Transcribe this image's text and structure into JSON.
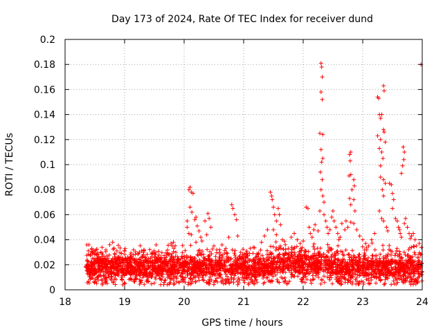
{
  "chart_data": {
    "type": "scatter",
    "title": "Day 173 of 2024, Rate Of TEC Index for receiver dund",
    "xlabel": "GPS time / hours",
    "ylabel": "ROTI / TECUs",
    "xlim": [
      18,
      24
    ],
    "ylim": [
      0,
      0.2
    ],
    "x_ticks": [
      18,
      19,
      20,
      21,
      22,
      23,
      24
    ],
    "y_ticks": [
      0,
      0.02,
      0.04,
      0.06,
      0.08,
      0.1,
      0.12,
      0.14,
      0.16,
      0.18,
      0.2
    ],
    "x_tick_labels": [
      "18",
      "19",
      "20",
      "21",
      "22",
      "23",
      "24"
    ],
    "y_tick_labels": [
      "0",
      "0.02",
      "0.04",
      "0.06",
      "0.08",
      "0.1",
      "0.12",
      "0.14",
      "0.16",
      "0.18",
      "0.2"
    ],
    "grid": true,
    "marker": "+",
    "marker_color": "#ff0000",
    "series": [
      {
        "name": "ROTI",
        "points": [
          [
            18.4,
            0.036
          ],
          [
            18.45,
            0.033
          ],
          [
            18.5,
            0.031
          ],
          [
            18.42,
            0.028
          ],
          [
            18.55,
            0.025
          ],
          [
            18.6,
            0.03
          ],
          [
            18.65,
            0.022
          ],
          [
            18.7,
            0.027
          ],
          [
            18.75,
            0.036
          ],
          [
            18.8,
            0.038
          ],
          [
            18.85,
            0.024
          ],
          [
            18.9,
            0.021
          ],
          [
            18.95,
            0.029
          ],
          [
            19.0,
            0.031
          ],
          [
            19.05,
            0.026
          ],
          [
            19.1,
            0.028
          ],
          [
            19.15,
            0.032
          ],
          [
            19.2,
            0.024
          ],
          [
            19.25,
            0.03
          ],
          [
            19.3,
            0.027
          ],
          [
            19.4,
            0.025
          ],
          [
            19.5,
            0.029
          ],
          [
            19.6,
            0.024
          ],
          [
            19.7,
            0.026
          ],
          [
            19.78,
            0.037
          ],
          [
            19.8,
            0.035
          ],
          [
            19.82,
            0.038
          ],
          [
            19.9,
            0.024
          ],
          [
            20.0,
            0.027
          ],
          [
            20.08,
            0.08
          ],
          [
            20.1,
            0.082
          ],
          [
            20.12,
            0.078
          ],
          [
            20.15,
            0.077
          ],
          [
            20.1,
            0.066
          ],
          [
            20.13,
            0.062
          ],
          [
            20.18,
            0.056
          ],
          [
            20.2,
            0.058
          ],
          [
            20.05,
            0.055
          ],
          [
            20.05,
            0.05
          ],
          [
            20.08,
            0.045
          ],
          [
            20.12,
            0.044
          ],
          [
            20.22,
            0.051
          ],
          [
            20.25,
            0.047
          ],
          [
            20.28,
            0.042
          ],
          [
            20.3,
            0.039
          ],
          [
            20.35,
            0.055
          ],
          [
            20.4,
            0.061
          ],
          [
            20.42,
            0.057
          ],
          [
            20.45,
            0.05
          ],
          [
            20.38,
            0.044
          ],
          [
            20.2,
            0.038
          ],
          [
            20.5,
            0.035
          ],
          [
            20.55,
            0.032
          ],
          [
            20.6,
            0.03
          ],
          [
            20.65,
            0.028
          ],
          [
            20.7,
            0.033
          ],
          [
            20.75,
            0.042
          ],
          [
            20.8,
            0.068
          ],
          [
            20.82,
            0.065
          ],
          [
            20.85,
            0.06
          ],
          [
            20.88,
            0.056
          ],
          [
            20.9,
            0.043
          ],
          [
            20.95,
            0.03
          ],
          [
            21.0,
            0.027
          ],
          [
            21.05,
            0.031
          ],
          [
            21.1,
            0.029
          ],
          [
            21.2,
            0.026
          ],
          [
            21.3,
            0.038
          ],
          [
            21.35,
            0.043
          ],
          [
            21.4,
            0.048
          ],
          [
            21.45,
            0.078
          ],
          [
            21.47,
            0.075
          ],
          [
            21.48,
            0.072
          ],
          [
            21.5,
            0.066
          ],
          [
            21.52,
            0.06
          ],
          [
            21.55,
            0.055
          ],
          [
            21.58,
            0.065
          ],
          [
            21.6,
            0.06
          ],
          [
            21.62,
            0.052
          ],
          [
            21.5,
            0.048
          ],
          [
            21.55,
            0.044
          ],
          [
            21.65,
            0.04
          ],
          [
            21.7,
            0.036
          ],
          [
            21.75,
            0.033
          ],
          [
            21.8,
            0.042
          ],
          [
            21.85,
            0.045
          ],
          [
            21.9,
            0.04
          ],
          [
            21.95,
            0.037
          ],
          [
            22.0,
            0.039
          ],
          [
            22.05,
            0.066
          ],
          [
            22.08,
            0.065
          ],
          [
            22.1,
            0.05
          ],
          [
            22.12,
            0.045
          ],
          [
            22.15,
            0.042
          ],
          [
            22.18,
            0.048
          ],
          [
            22.2,
            0.052
          ],
          [
            22.25,
            0.047
          ],
          [
            22.28,
            0.063
          ],
          [
            22.3,
            0.181
          ],
          [
            22.31,
            0.178
          ],
          [
            22.32,
            0.17
          ],
          [
            22.3,
            0.158
          ],
          [
            22.32,
            0.152
          ],
          [
            22.28,
            0.125
          ],
          [
            22.33,
            0.124
          ],
          [
            22.3,
            0.112
          ],
          [
            22.33,
            0.105
          ],
          [
            22.31,
            0.102
          ],
          [
            22.29,
            0.094
          ],
          [
            22.32,
            0.088
          ],
          [
            22.3,
            0.08
          ],
          [
            22.33,
            0.075
          ],
          [
            22.35,
            0.07
          ],
          [
            22.35,
            0.06
          ],
          [
            22.38,
            0.055
          ],
          [
            22.4,
            0.05
          ],
          [
            22.42,
            0.045
          ],
          [
            22.45,
            0.048
          ],
          [
            22.48,
            0.058
          ],
          [
            22.5,
            0.063
          ],
          [
            22.52,
            0.055
          ],
          [
            22.55,
            0.05
          ],
          [
            22.58,
            0.045
          ],
          [
            22.6,
            0.04
          ],
          [
            22.62,
            0.042
          ],
          [
            22.65,
            0.053
          ],
          [
            22.7,
            0.048
          ],
          [
            22.72,
            0.055
          ],
          [
            22.75,
            0.05
          ],
          [
            22.78,
            0.108
          ],
          [
            22.8,
            0.11
          ],
          [
            22.79,
            0.103
          ],
          [
            22.77,
            0.091
          ],
          [
            22.8,
            0.092
          ],
          [
            22.85,
            0.088
          ],
          [
            22.86,
            0.083
          ],
          [
            22.82,
            0.08
          ],
          [
            22.85,
            0.072
          ],
          [
            22.78,
            0.073
          ],
          [
            22.8,
            0.068
          ],
          [
            22.87,
            0.063
          ],
          [
            22.8,
            0.054
          ],
          [
            22.85,
            0.053
          ],
          [
            22.9,
            0.048
          ],
          [
            22.95,
            0.043
          ],
          [
            23.0,
            0.04
          ],
          [
            23.05,
            0.037
          ],
          [
            23.1,
            0.035
          ],
          [
            23.15,
            0.04
          ],
          [
            23.2,
            0.045
          ],
          [
            23.25,
            0.154
          ],
          [
            23.27,
            0.153
          ],
          [
            23.35,
            0.163
          ],
          [
            23.36,
            0.159
          ],
          [
            23.28,
            0.14
          ],
          [
            23.3,
            0.137
          ],
          [
            23.32,
            0.14
          ],
          [
            23.25,
            0.123
          ],
          [
            23.35,
            0.128
          ],
          [
            23.36,
            0.126
          ],
          [
            23.3,
            0.12
          ],
          [
            23.38,
            0.118
          ],
          [
            23.28,
            0.113
          ],
          [
            23.32,
            0.11
          ],
          [
            23.34,
            0.105
          ],
          [
            23.3,
            0.099
          ],
          [
            23.35,
            0.088
          ],
          [
            23.38,
            0.085
          ],
          [
            23.3,
            0.09
          ],
          [
            23.33,
            0.08
          ],
          [
            23.35,
            0.075
          ],
          [
            23.28,
            0.063
          ],
          [
            23.32,
            0.057
          ],
          [
            23.35,
            0.055
          ],
          [
            23.4,
            0.05
          ],
          [
            23.42,
            0.047
          ],
          [
            23.45,
            0.085
          ],
          [
            23.48,
            0.084
          ],
          [
            23.5,
            0.077
          ],
          [
            23.52,
            0.072
          ],
          [
            23.5,
            0.065
          ],
          [
            23.55,
            0.057
          ],
          [
            23.58,
            0.055
          ],
          [
            23.6,
            0.05
          ],
          [
            23.62,
            0.048
          ],
          [
            23.63,
            0.045
          ],
          [
            23.65,
            0.042
          ],
          [
            23.68,
            0.114
          ],
          [
            23.7,
            0.11
          ],
          [
            23.69,
            0.104
          ],
          [
            23.67,
            0.099
          ],
          [
            23.65,
            0.093
          ],
          [
            23.72,
            0.057
          ],
          [
            23.7,
            0.053
          ],
          [
            23.75,
            0.05
          ],
          [
            23.78,
            0.045
          ],
          [
            23.8,
            0.041
          ],
          [
            23.82,
            0.043
          ],
          [
            23.85,
            0.045
          ],
          [
            23.88,
            0.04
          ],
          [
            23.9,
            0.035
          ],
          [
            23.95,
            0.037
          ],
          [
            23.98,
            0.18
          ]
        ]
      }
    ]
  }
}
